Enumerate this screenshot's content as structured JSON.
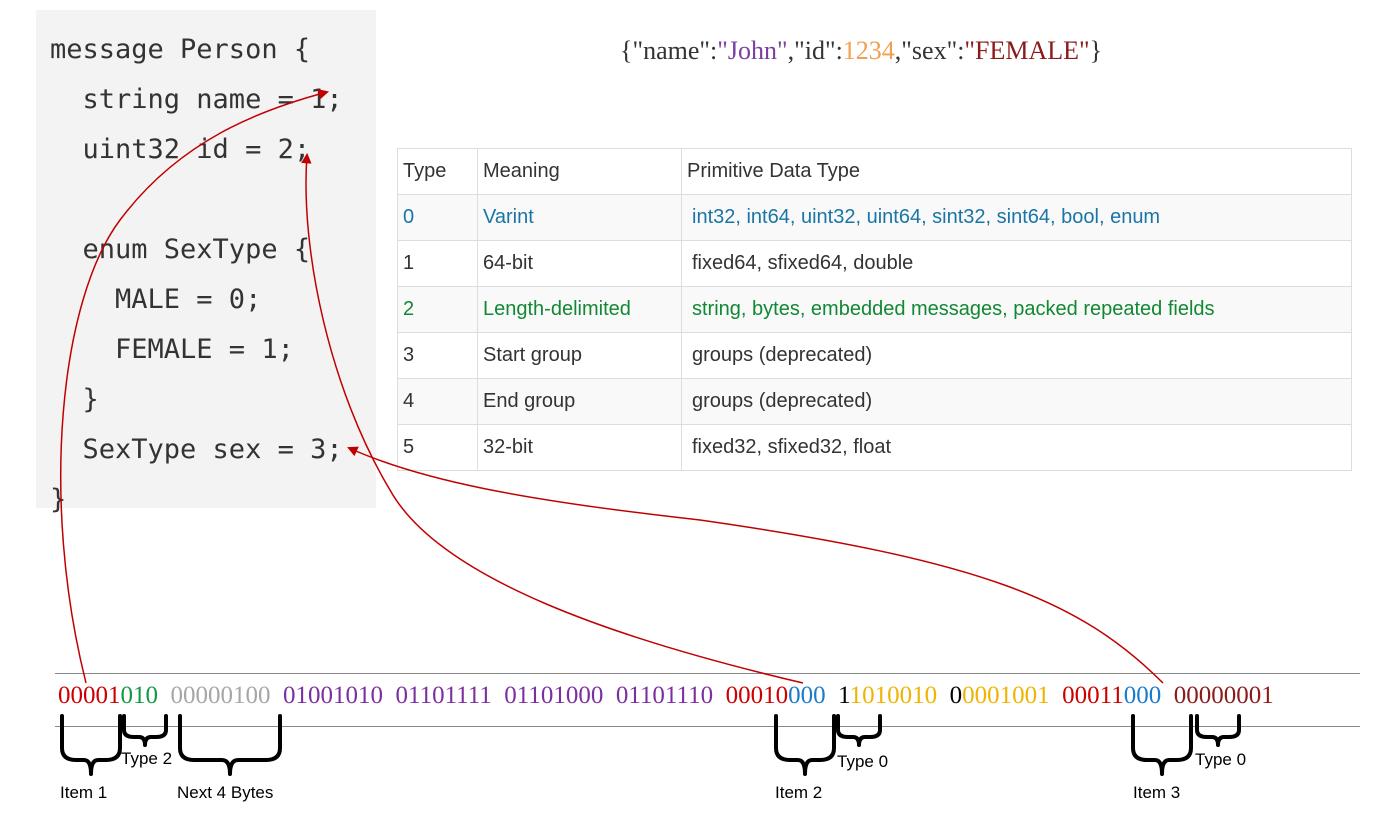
{
  "code": {
    "lines": [
      "message Person {",
      "  string name = 1;",
      "  uint32 id = 2;",
      "",
      "  enum SexType {",
      "    MALE = 0;",
      "    FEMALE = 1;",
      "  }",
      "  SexType sex = 3;",
      "}"
    ]
  },
  "json": {
    "open": "{",
    "k1": "\"name\"",
    "c1": ":",
    "v1": "\"John\"",
    "s1": ",",
    "k2": "\"id\"",
    "c2": ":",
    "v2": "1234",
    "s2": ",",
    "k3": "\"sex\"",
    "c3": ":",
    "v3": "\"FEMALE\"",
    "close": "}",
    "colors": {
      "keys": "#333333",
      "name": "#7b3fa0",
      "id": "#f0a050",
      "sex": "#8b1a1a"
    }
  },
  "table": {
    "headers": [
      "Type",
      "Meaning",
      "Primitive Data Type"
    ],
    "rows": [
      {
        "type": "0",
        "meaning": "Varint",
        "primitive": "int32, int64, uint32, uint64, sint32, sint64, bool, enum",
        "color": "#1a75a5"
      },
      {
        "type": "1",
        "meaning": "64-bit",
        "primitive": "fixed64, sfixed64, double",
        "color": "#333333"
      },
      {
        "type": "2",
        "meaning": "Length-delimited",
        "primitive": "string, bytes, embedded messages, packed repeated fields",
        "color": "#118833"
      },
      {
        "type": "3",
        "meaning": "Start group",
        "primitive": "groups (deprecated)",
        "color": "#333333"
      },
      {
        "type": "4",
        "meaning": "End group",
        "primitive": "groups (deprecated)",
        "color": "#333333"
      },
      {
        "type": "5",
        "meaning": "32-bit",
        "primitive": "fixed32, sfixed32, float",
        "color": "#333333"
      }
    ]
  },
  "binary": {
    "segments": [
      {
        "text": "00001",
        "color": "#cc0000"
      },
      {
        "text": "010",
        "color": "#119944"
      },
      {
        "text": "  ",
        "color": "#000000"
      },
      {
        "text": "00000100",
        "color": "#a6a6a6"
      },
      {
        "text": "  ",
        "color": "#000000"
      },
      {
        "text": "01001010  01101111  01101000  01101110",
        "color": "#7b2fa0"
      },
      {
        "text": "  ",
        "color": "#000000"
      },
      {
        "text": "00010",
        "color": "#cc0000"
      },
      {
        "text": "000",
        "color": "#1a7acc"
      },
      {
        "text": "  ",
        "color": "#000000"
      },
      {
        "text": "1",
        "color": "#000000"
      },
      {
        "text": "1010010",
        "color": "#f0b400"
      },
      {
        "text": "  ",
        "color": "#000000"
      },
      {
        "text": "0",
        "color": "#000000"
      },
      {
        "text": "0001001",
        "color": "#f0b400"
      },
      {
        "text": "  ",
        "color": "#000000"
      },
      {
        "text": "00011",
        "color": "#cc0000"
      },
      {
        "text": "000",
        "color": "#1a7acc"
      },
      {
        "text": "  ",
        "color": "#000000"
      },
      {
        "text": "00000001",
        "color": "#8b1a1a"
      }
    ]
  },
  "labels": {
    "item1": "Item 1",
    "type2": "Type 2",
    "next4": "Next 4 Bytes",
    "item2": "Item 2",
    "type0a": "Type 0",
    "item3": "Item 3",
    "type0b": "Type 0"
  },
  "colors": {
    "arrow": "#c00000"
  }
}
